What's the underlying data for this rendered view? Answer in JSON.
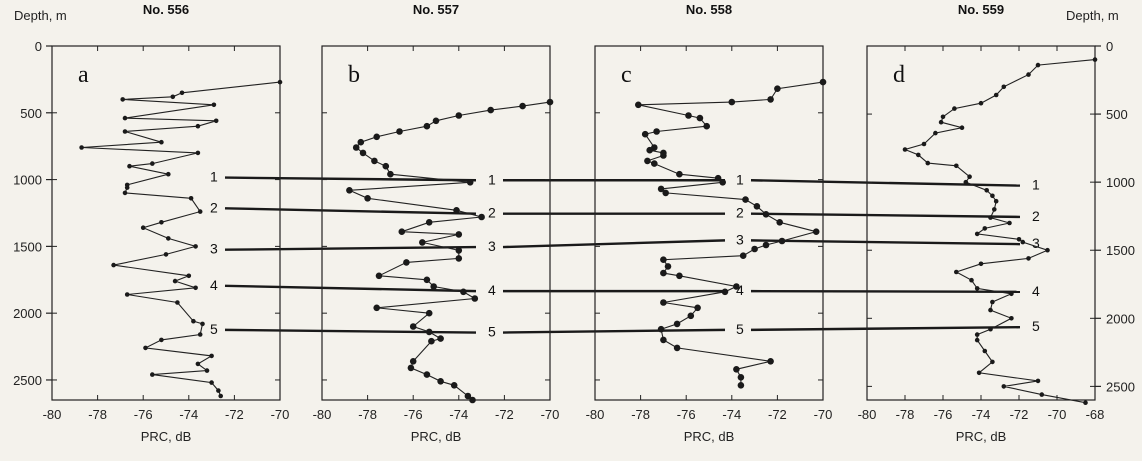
{
  "chart_data": {
    "type": "line",
    "y_axis": {
      "left_label": "Depth, m",
      "right_label": "Depth, m",
      "left_range": [
        0,
        2650
      ],
      "left_ticks": [
        "0",
        "500",
        "1000",
        "1500",
        "2000",
        "2500"
      ],
      "right_range": [
        0,
        2600
      ],
      "right_ticks": [
        "0",
        "500",
        "1000",
        "1500",
        "2000",
        "2500"
      ],
      "inverted": true
    },
    "panels": [
      {
        "title": "No. 556",
        "letter": "a",
        "xlabel": "PRC, dB",
        "xlim": [
          -80,
          -70
        ],
        "xticks": [
          "-80",
          "-78",
          "-76",
          "-74",
          "-72",
          "-70"
        ],
        "marker": "small",
        "points": [
          [
            -70.0,
            270
          ],
          [
            -74.3,
            350
          ],
          [
            -74.7,
            380
          ],
          [
            -76.9,
            400
          ],
          [
            -72.9,
            440
          ],
          [
            -76.8,
            540
          ],
          [
            -72.8,
            560
          ],
          [
            -73.6,
            600
          ],
          [
            -76.8,
            640
          ],
          [
            -75.2,
            720
          ],
          [
            -78.7,
            760
          ],
          [
            -73.6,
            800
          ],
          [
            -75.6,
            880
          ],
          [
            -76.6,
            900
          ],
          [
            -74.9,
            960
          ],
          [
            -76.7,
            1040
          ],
          [
            -76.7,
            1060
          ],
          [
            -76.8,
            1100
          ],
          [
            -73.9,
            1140
          ],
          [
            -73.5,
            1240
          ],
          [
            -75.2,
            1320
          ],
          [
            -76.0,
            1360
          ],
          [
            -74.9,
            1440
          ],
          [
            -73.7,
            1500
          ],
          [
            -75.0,
            1560
          ],
          [
            -77.3,
            1640
          ],
          [
            -74.0,
            1720
          ],
          [
            -74.6,
            1760
          ],
          [
            -73.7,
            1810
          ],
          [
            -76.7,
            1860
          ],
          [
            -74.5,
            1920
          ],
          [
            -73.8,
            2060
          ],
          [
            -73.4,
            2080
          ],
          [
            -73.5,
            2160
          ],
          [
            -75.2,
            2200
          ],
          [
            -75.9,
            2260
          ],
          [
            -73.0,
            2320
          ],
          [
            -73.6,
            2380
          ],
          [
            -73.2,
            2430
          ],
          [
            -75.6,
            2460
          ],
          [
            -73.0,
            2520
          ],
          [
            -72.7,
            2580
          ],
          [
            -72.6,
            2620
          ]
        ]
      },
      {
        "title": "No. 557",
        "letter": "b",
        "xlabel": "PRC, dB",
        "xlim": [
          -80,
          -70
        ],
        "xticks": [
          "-80",
          "-78",
          "-76",
          "-74",
          "-72",
          "-70"
        ],
        "marker": "large",
        "points": [
          [
            -70.0,
            420
          ],
          [
            -71.2,
            450
          ],
          [
            -72.6,
            480
          ],
          [
            -74.0,
            520
          ],
          [
            -75.0,
            560
          ],
          [
            -75.4,
            600
          ],
          [
            -76.6,
            640
          ],
          [
            -77.6,
            680
          ],
          [
            -78.3,
            720
          ],
          [
            -78.5,
            760
          ],
          [
            -78.2,
            800
          ],
          [
            -77.7,
            860
          ],
          [
            -77.2,
            900
          ],
          [
            -77.0,
            960
          ],
          [
            -73.5,
            1020
          ],
          [
            -78.8,
            1080
          ],
          [
            -78.0,
            1140
          ],
          [
            -74.1,
            1230
          ],
          [
            -73.0,
            1280
          ],
          [
            -75.3,
            1320
          ],
          [
            -76.5,
            1390
          ],
          [
            -74.0,
            1410
          ],
          [
            -75.6,
            1470
          ],
          [
            -74.0,
            1530
          ],
          [
            -74.0,
            1590
          ],
          [
            -76.3,
            1620
          ],
          [
            -77.5,
            1720
          ],
          [
            -75.4,
            1750
          ],
          [
            -75.1,
            1800
          ],
          [
            -73.8,
            1840
          ],
          [
            -73.3,
            1890
          ],
          [
            -77.6,
            1960
          ],
          [
            -75.3,
            2000
          ],
          [
            -76.0,
            2100
          ],
          [
            -75.3,
            2140
          ],
          [
            -74.8,
            2190
          ],
          [
            -75.2,
            2210
          ],
          [
            -76.0,
            2360
          ],
          [
            -76.1,
            2410
          ],
          [
            -75.4,
            2460
          ],
          [
            -74.8,
            2510
          ],
          [
            -74.2,
            2540
          ],
          [
            -73.6,
            2620
          ],
          [
            -73.4,
            2650
          ]
        ]
      },
      {
        "title": "No. 558",
        "letter": "c",
        "xlabel": "PRC, dB",
        "xlim": [
          -80,
          -70
        ],
        "xticks": [
          "-80",
          "-78",
          "-76",
          "-74",
          "-72",
          "-70"
        ],
        "marker": "large",
        "points": [
          [
            -70.0,
            270
          ],
          [
            -72.0,
            320
          ],
          [
            -72.3,
            400
          ],
          [
            -74.0,
            420
          ],
          [
            -78.1,
            440
          ],
          [
            -75.9,
            520
          ],
          [
            -75.4,
            540
          ],
          [
            -75.1,
            600
          ],
          [
            -77.3,
            640
          ],
          [
            -77.8,
            660
          ],
          [
            -77.4,
            760
          ],
          [
            -77.6,
            780
          ],
          [
            -77.0,
            800
          ],
          [
            -77.0,
            820
          ],
          [
            -77.7,
            860
          ],
          [
            -77.4,
            880
          ],
          [
            -76.3,
            960
          ],
          [
            -74.6,
            990
          ],
          [
            -74.4,
            1020
          ],
          [
            -77.1,
            1070
          ],
          [
            -76.9,
            1100
          ],
          [
            -73.4,
            1150
          ],
          [
            -72.9,
            1200
          ],
          [
            -72.5,
            1260
          ],
          [
            -71.9,
            1320
          ],
          [
            -70.3,
            1390
          ],
          [
            -71.8,
            1460
          ],
          [
            -72.5,
            1490
          ],
          [
            -73.0,
            1520
          ],
          [
            -73.5,
            1570
          ],
          [
            -77.0,
            1600
          ],
          [
            -76.8,
            1650
          ],
          [
            -77.0,
            1700
          ],
          [
            -76.3,
            1720
          ],
          [
            -73.8,
            1800
          ],
          [
            -74.3,
            1840
          ],
          [
            -77.0,
            1920
          ],
          [
            -75.5,
            1960
          ],
          [
            -75.8,
            2020
          ],
          [
            -76.4,
            2080
          ],
          [
            -77.1,
            2120
          ],
          [
            -77.0,
            2200
          ],
          [
            -76.4,
            2260
          ],
          [
            -72.3,
            2360
          ],
          [
            -73.8,
            2420
          ],
          [
            -73.6,
            2480
          ],
          [
            -73.6,
            2540
          ]
        ]
      },
      {
        "title": "No. 559",
        "letter": "d",
        "xlabel": "PRC, dB",
        "xlim": [
          -80,
          -68
        ],
        "xticks": [
          "-80",
          "-78",
          "-76",
          "-74",
          "-72",
          "-70",
          "-68"
        ],
        "marker": "small",
        "points": [
          [
            -68.0,
            100
          ],
          [
            -71.0,
            140
          ],
          [
            -71.5,
            210
          ],
          [
            -72.8,
            300
          ],
          [
            -73.2,
            360
          ],
          [
            -74.0,
            420
          ],
          [
            -75.4,
            460
          ],
          [
            -76.0,
            520
          ],
          [
            -76.1,
            560
          ],
          [
            -75.0,
            600
          ],
          [
            -76.4,
            640
          ],
          [
            -77.0,
            720
          ],
          [
            -78.0,
            760
          ],
          [
            -77.3,
            800
          ],
          [
            -76.8,
            860
          ],
          [
            -75.3,
            880
          ],
          [
            -74.6,
            960
          ],
          [
            -74.8,
            1000
          ],
          [
            -73.7,
            1060
          ],
          [
            -73.4,
            1100
          ],
          [
            -73.2,
            1140
          ],
          [
            -73.3,
            1200
          ],
          [
            -73.5,
            1260
          ],
          [
            -72.5,
            1300
          ],
          [
            -73.8,
            1340
          ],
          [
            -74.2,
            1380
          ],
          [
            -72.0,
            1420
          ],
          [
            -71.8,
            1440
          ],
          [
            -70.5,
            1500
          ],
          [
            -71.5,
            1560
          ],
          [
            -74.0,
            1600
          ],
          [
            -75.3,
            1660
          ],
          [
            -74.5,
            1720
          ],
          [
            -74.2,
            1780
          ],
          [
            -72.4,
            1820
          ],
          [
            -73.4,
            1880
          ],
          [
            -73.5,
            1940
          ],
          [
            -72.4,
            2000
          ],
          [
            -73.5,
            2080
          ],
          [
            -74.2,
            2120
          ],
          [
            -74.2,
            2160
          ],
          [
            -73.8,
            2240
          ],
          [
            -73.4,
            2320
          ],
          [
            -74.1,
            2400
          ],
          [
            -71.0,
            2460
          ],
          [
            -72.8,
            2500
          ],
          [
            -70.8,
            2560
          ],
          [
            -68.5,
            2620
          ]
        ]
      }
    ],
    "horizons": [
      {
        "label": "1",
        "depths": [
          1000,
          1020,
          1020,
          1040
        ]
      },
      {
        "label": "2",
        "depths": [
          1230,
          1270,
          1270,
          1270
        ]
      },
      {
        "label": "3",
        "depths": [
          1540,
          1520,
          1470,
          1470
        ]
      },
      {
        "label": "4",
        "depths": [
          1810,
          1850,
          1850,
          1820
        ]
      },
      {
        "label": "5",
        "depths": [
          2140,
          2160,
          2140,
          2080
        ]
      }
    ]
  }
}
